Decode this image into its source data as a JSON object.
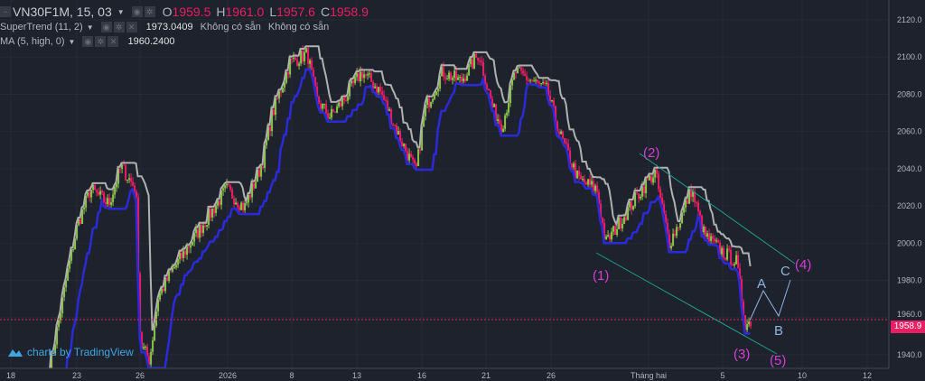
{
  "legend": {
    "symbol": "VN30F1M, 15, 03",
    "open_label": "O",
    "open": "1959.5",
    "high_label": "H",
    "high": "1961.0",
    "low_label": "L",
    "low": "1957.6",
    "close_label": "C",
    "close": "1958.9",
    "supertrend": {
      "label": "SuperTrend (11, 2)",
      "value": "1973.0409",
      "na1": "Không có sẵn",
      "na2": "Không có sẵn"
    },
    "ma": {
      "label": "MA (5, high, 0)",
      "value": "1960.2400"
    }
  },
  "watermark": "charts by TradingView",
  "colors": {
    "background": "#1e222d",
    "up": "#8bc34a",
    "down": "#e91e63",
    "supertrend": "#2a2ad8",
    "ma": "#b0b0b0",
    "trendline": "#1f9e8c",
    "wave_label": "#d43fd4",
    "abc_label": "#8fb4e0"
  },
  "chart_data": {
    "type": "line",
    "ylim": [
      1935,
      2127
    ],
    "y_ticks": [
      "2120.0",
      "2100.0",
      "2080.0",
      "2060.0",
      "2040.0",
      "2020.0",
      "2000.0",
      "1980.0",
      "1960.0",
      "1940.0"
    ],
    "x_ticks": [
      "18",
      "23",
      "26",
      "2026",
      "8",
      "13",
      "16",
      "21",
      "26",
      "Tháng hai",
      "5",
      "10",
      "12"
    ],
    "last_price": "1958.9",
    "close_path": [
      [
        "2025-12-20T22",
        1932
      ],
      [
        "2025-12-22T07",
        1985
      ],
      [
        "2025-12-23T00",
        2009
      ],
      [
        "2025-12-23T15",
        2029
      ],
      [
        "2025-12-24T12",
        2021
      ],
      [
        "2025-12-25T02",
        2041
      ],
      [
        "2025-12-25T19",
        2029
      ],
      [
        "2025-12-26T00",
        1946
      ],
      [
        "2025-12-26T15",
        1937
      ],
      [
        "2025-12-27T05",
        1971
      ],
      [
        "2025-12-28T04",
        1985
      ],
      [
        "2025-12-29T10",
        2000
      ],
      [
        "2025-12-30T15",
        2014
      ],
      [
        "2025-12-31T21",
        2029
      ],
      [
        "2026-01-02T19",
        2019
      ],
      [
        "2026-01-04T18",
        2043
      ],
      [
        "2026-01-05T18",
        2068
      ],
      [
        "2026-01-07T18",
        2097
      ],
      [
        "2026-01-09T04",
        2102
      ],
      [
        "2026-01-09T21",
        2077
      ],
      [
        "2026-01-10T22",
        2068
      ],
      [
        "2026-01-11T23",
        2077
      ],
      [
        "2026-01-13T05",
        2092
      ],
      [
        "2026-01-14T01",
        2082
      ],
      [
        "2026-01-14T22",
        2058
      ],
      [
        "2026-01-15T17",
        2038
      ],
      [
        "2026-01-16T05",
        2072
      ],
      [
        "2026-01-17T14",
        2092
      ],
      [
        "2026-01-19T00",
        2087
      ],
      [
        "2026-01-20T10",
        2102
      ],
      [
        "2026-01-21T12",
        2072
      ],
      [
        "2026-01-22T05",
        2063
      ],
      [
        "2026-01-23T05",
        2092
      ],
      [
        "2026-01-24T14",
        2087
      ],
      [
        "2026-01-25T16",
        2082
      ],
      [
        "2026-01-26T13",
        2058
      ],
      [
        "2026-01-27T16",
        2034
      ],
      [
        "2026-01-28T19",
        2029
      ],
      [
        "2026-01-29T08",
        2000
      ],
      [
        "2026-01-30T10",
        2014
      ],
      [
        "2026-01-31T13",
        2029
      ],
      [
        "2026-02-01T08",
        2038
      ],
      [
        "2026-02-02T02",
        2000
      ],
      [
        "2026-02-02T13",
        2009
      ],
      [
        "2026-02-03T07",
        2029
      ],
      [
        "2026-02-04T00",
        2004
      ],
      [
        "2026-02-05T00",
        1995
      ],
      [
        "2026-02-05T20",
        1990
      ],
      [
        "2026-02-06T10",
        1956
      ],
      [
        "2026-02-06T20",
        1958.9
      ]
    ],
    "annotations": {
      "waves": [
        "(1)",
        "(2)",
        "(3)",
        "(4)",
        "(5)"
      ],
      "abc": [
        "A",
        "B",
        "C"
      ]
    }
  }
}
